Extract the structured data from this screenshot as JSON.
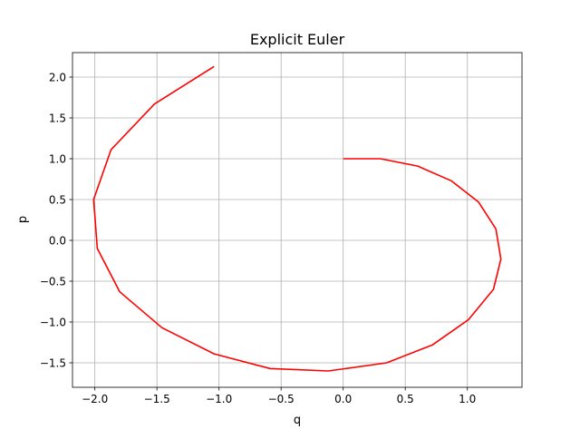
{
  "chart_data": {
    "type": "line",
    "title": "Explicit Euler",
    "xlabel": "q",
    "ylabel": "p",
    "xlim": [
      -2.18,
      1.44
    ],
    "ylim": [
      -1.8,
      2.3
    ],
    "grid": true,
    "xticks": [
      -2.0,
      -1.5,
      -1.0,
      -0.5,
      0.0,
      0.5,
      1.0
    ],
    "xtick_labels": [
      "−2.0",
      "−1.5",
      "−1.0",
      "−0.5",
      "0.0",
      "0.5",
      "1.0"
    ],
    "yticks": [
      -1.5,
      -1.0,
      -0.5,
      0.0,
      0.5,
      1.0,
      1.5,
      2.0
    ],
    "ytick_labels": [
      "−1.5",
      "−1.0",
      "−0.5",
      "0.0",
      "0.5",
      "1.0",
      "1.5",
      "2.0"
    ],
    "series": [
      {
        "color": "#ff0000",
        "x": [
          0.0,
          0.3,
          0.6,
          0.87,
          1.09,
          1.23,
          1.27,
          1.21,
          1.01,
          0.72,
          0.35,
          -0.12,
          -0.59,
          -1.04,
          -1.46,
          -1.8,
          -1.98,
          -2.01,
          -1.87,
          -1.52,
          -1.04
        ],
        "y": [
          1.0,
          1.0,
          0.91,
          0.73,
          0.47,
          0.14,
          -0.23,
          -0.6,
          -0.97,
          -1.28,
          -1.5,
          -1.6,
          -1.57,
          -1.39,
          -1.07,
          -0.63,
          -0.1,
          0.5,
          1.11,
          1.67,
          2.13
        ]
      }
    ]
  }
}
